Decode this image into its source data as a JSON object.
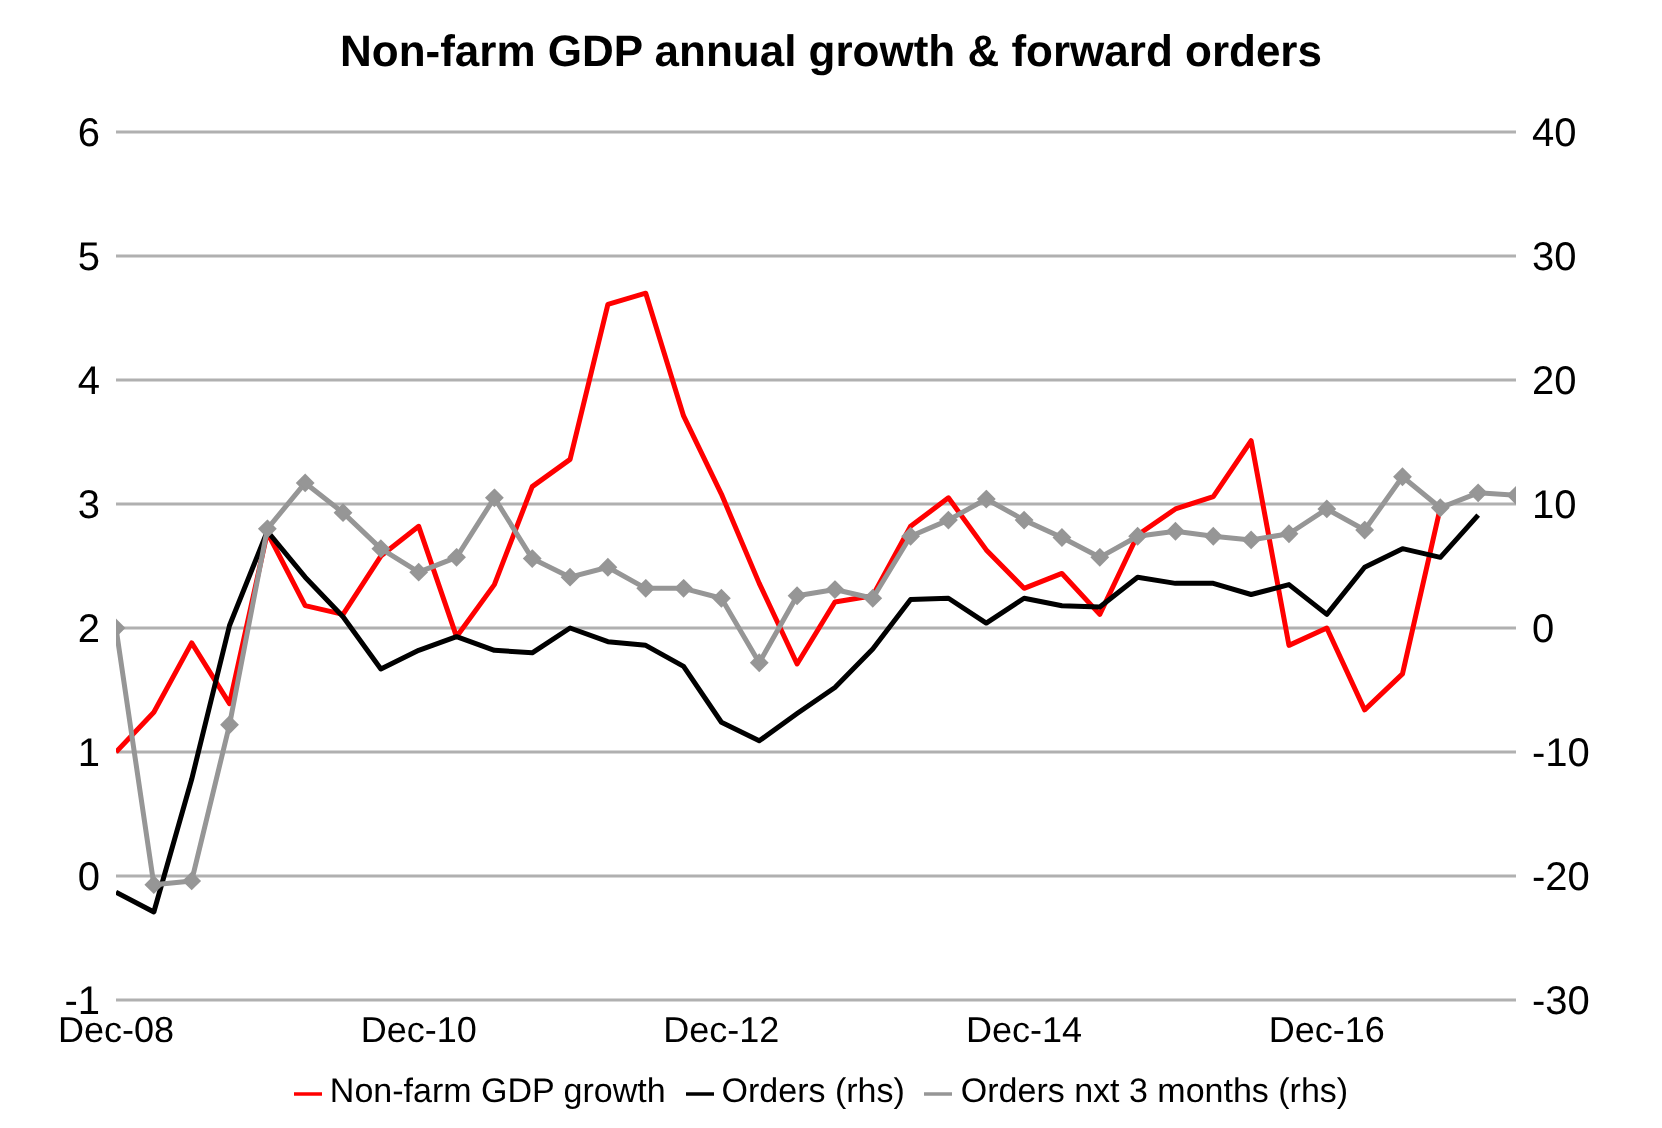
{
  "chart_data": {
    "type": "line",
    "title": "Non-farm GDP annual growth & forward orders",
    "categories": [
      "Dec-08",
      null,
      null,
      null,
      null,
      null,
      null,
      null,
      "Dec-10",
      null,
      null,
      null,
      null,
      null,
      null,
      null,
      "Dec-12",
      null,
      null,
      null,
      null,
      null,
      null,
      null,
      "Dec-14",
      null,
      null,
      null,
      null,
      null,
      null,
      null,
      "Dec-16",
      null,
      null,
      null,
      null,
      null
    ],
    "series": [
      {
        "name": "Non-farm GDP growth",
        "color": "#ff0000",
        "marker": "none",
        "values": [
          1.0,
          1.32,
          1.88,
          1.39,
          2.77,
          2.18,
          2.11,
          2.58,
          2.82,
          1.93,
          2.35,
          3.14,
          3.36,
          4.61,
          4.7,
          3.71,
          3.08,
          2.36,
          1.71,
          2.21,
          2.26,
          2.82,
          3.05,
          2.63,
          2.32,
          2.44,
          2.11,
          2.75,
          2.96,
          3.06,
          3.51,
          1.86,
          2.0,
          1.34,
          1.63,
          2.97,
          null,
          null
        ]
      },
      {
        "name": "Orders (rhs)",
        "color": "#000000",
        "axis": "y2",
        "marker": "none",
        "values": [
          -21.3,
          -22.9,
          -12.2,
          0.2,
          7.8,
          4.1,
          0.9,
          -3.3,
          -1.8,
          -0.7,
          -1.8,
          -2.0,
          0.0,
          -1.1,
          -1.4,
          -3.1,
          -7.6,
          -9.1,
          -6.9,
          -4.8,
          -1.7,
          2.3,
          2.4,
          0.4,
          2.4,
          1.8,
          1.7,
          4.1,
          3.6,
          3.6,
          2.7,
          3.5,
          1.1,
          4.9,
          6.4,
          5.7,
          9.1,
          null
        ]
      },
      {
        "name": "Orders nxt 3 months (rhs)",
        "color": "#969696",
        "axis": "y2",
        "marker": "diamond",
        "values": [
          0.0,
          -20.7,
          -20.4,
          -7.8,
          8.0,
          11.7,
          9.3,
          6.4,
          4.5,
          5.7,
          10.5,
          5.6,
          4.1,
          4.9,
          3.2,
          3.2,
          2.4,
          -2.8,
          2.6,
          3.1,
          2.4,
          7.4,
          8.7,
          10.4,
          8.7,
          7.3,
          5.7,
          7.4,
          7.8,
          7.4,
          7.1,
          7.6,
          9.6,
          7.9,
          12.2,
          9.7,
          10.9,
          10.7
        ]
      }
    ],
    "ylim": [
      -1,
      6
    ],
    "yticks": [
      -1,
      0,
      1,
      2,
      3,
      4,
      5,
      6
    ],
    "y2lim": [
      -30,
      40
    ],
    "y2ticks": [
      -30,
      -20,
      -10,
      0,
      10,
      20,
      30,
      40
    ],
    "grid": "y",
    "legend": "bottom",
    "line_style": "solid"
  }
}
